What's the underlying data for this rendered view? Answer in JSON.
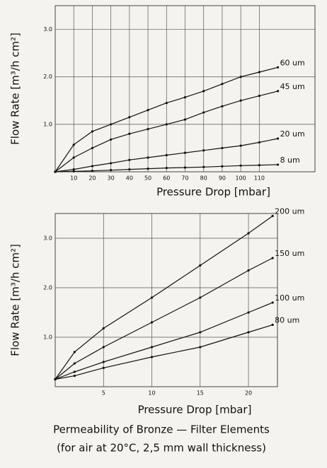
{
  "chart_data": [
    {
      "type": "line",
      "xlabel": "Pressure Drop [mbar]",
      "ylabel": "Flow Rate [m³/h cm²]",
      "x": [
        0,
        10,
        20,
        30,
        40,
        50,
        60,
        70,
        80,
        90,
        100,
        110,
        120
      ],
      "xlim": [
        0,
        140
      ],
      "xticks": [
        10,
        20,
        30,
        40,
        50,
        60,
        70,
        80,
        90,
        100,
        110
      ],
      "ylim": [
        0,
        3.5
      ],
      "yticks": [
        {
          "value": 1,
          "label": "1.0"
        },
        {
          "value": 2,
          "label": "2.0"
        },
        {
          "value": 3,
          "label": "3.0"
        }
      ],
      "grid": true,
      "series": [
        {
          "name": "60 um",
          "color": "#111111",
          "values": [
            0,
            0.57,
            0.85,
            1.0,
            1.15,
            1.3,
            1.45,
            1.57,
            1.7,
            1.85,
            2.0,
            2.1,
            2.2
          ]
        },
        {
          "name": "45 um",
          "color": "#111111",
          "values": [
            0,
            0.3,
            0.5,
            0.68,
            0.8,
            0.9,
            1.0,
            1.1,
            1.25,
            1.38,
            1.5,
            1.6,
            1.7
          ]
        },
        {
          "name": "20 um",
          "color": "#111111",
          "values": [
            0,
            0.05,
            0.12,
            0.18,
            0.25,
            0.3,
            0.35,
            0.4,
            0.45,
            0.5,
            0.55,
            0.62,
            0.7
          ]
        },
        {
          "name": "8 um",
          "color": "#111111",
          "values": [
            0,
            0.01,
            0.02,
            0.035,
            0.05,
            0.065,
            0.08,
            0.09,
            0.1,
            0.115,
            0.13,
            0.14,
            0.15
          ]
        }
      ]
    },
    {
      "type": "line",
      "xlabel": "Pressure Drop [mbar]",
      "ylabel": "Flow Rate [m³/h cm²]",
      "x": [
        0,
        2,
        5,
        10,
        15,
        20,
        22.5
      ],
      "xlim": [
        0,
        23
      ],
      "xticks": [
        5,
        10,
        15,
        20
      ],
      "ylim": [
        0,
        3.5
      ],
      "yticks": [
        {
          "value": 1,
          "label": "1.0"
        },
        {
          "value": 2,
          "label": "2.0"
        },
        {
          "value": 3,
          "label": "3.0"
        }
      ],
      "grid": true,
      "series": [
        {
          "name": "200 um",
          "color": "#111111",
          "values": [
            0.15,
            0.7,
            1.18,
            1.8,
            2.45,
            3.1,
            3.45
          ]
        },
        {
          "name": "150 um",
          "color": "#111111",
          "values": [
            0.15,
            0.47,
            0.8,
            1.3,
            1.8,
            2.35,
            2.6
          ]
        },
        {
          "name": "100 um",
          "color": "#111111",
          "values": [
            0.15,
            0.3,
            0.5,
            0.8,
            1.1,
            1.5,
            1.7
          ]
        },
        {
          "name": "80 um",
          "color": "#111111",
          "values": [
            0.15,
            0.22,
            0.38,
            0.6,
            0.8,
            1.1,
            1.25
          ]
        }
      ]
    }
  ],
  "caption": [
    "Permeability of Bronze — Filter Elements",
    "(for air at 20°C, 2,5 mm wall thickness)"
  ]
}
